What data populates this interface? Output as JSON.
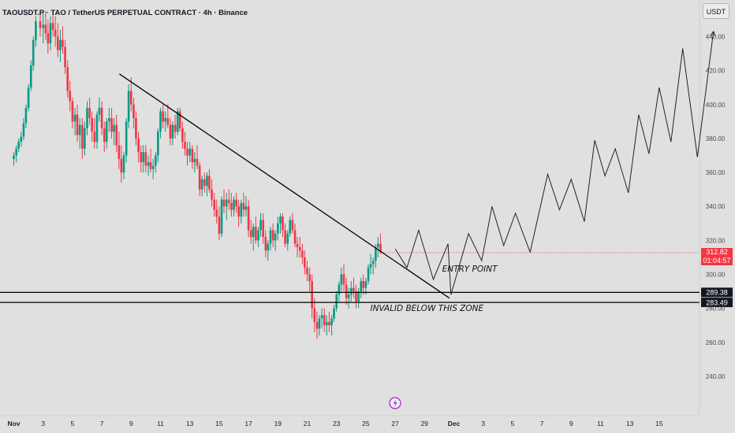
{
  "header": {
    "title": "TAOUSDT.P · TAO / TetherUS PERPETUAL CONTRACT · 4h · Binance",
    "unit": "USDT"
  },
  "chart_data": {
    "type": "candlestick",
    "symbol": "TAOUSDT.P",
    "interval": "4h",
    "exchange": "Binance",
    "ylim": [
      235,
      455
    ],
    "y_ticks": [
      "440.00",
      "420.00",
      "400.00",
      "380.00",
      "360.00",
      "340.00",
      "320.00",
      "300.00",
      "280.00",
      "260.00",
      "240.00"
    ],
    "x_ticks": [
      "Nov",
      "3",
      "5",
      "7",
      "9",
      "11",
      "13",
      "15",
      "17",
      "19",
      "21",
      "23",
      "25",
      "27",
      "29",
      "Dec",
      "3",
      "5",
      "7",
      "9",
      "11",
      "13",
      "15"
    ],
    "grid": false,
    "current_price": {
      "value": "312.82",
      "countdown": "01:04:57",
      "color": "#f23645"
    },
    "zone_lines": [
      {
        "value": 289.38,
        "label": "289.38"
      },
      {
        "value": 283.49,
        "label": "283.49"
      }
    ],
    "trendline": [
      {
        "day": 7.2,
        "price": 418
      },
      {
        "day": 29.7,
        "price": 286
      }
    ],
    "projection": [
      [
        26,
        315
      ],
      [
        26.8,
        304
      ],
      [
        27.6,
        326
      ],
      [
        28.6,
        297
      ],
      [
        29.6,
        318
      ],
      [
        29.8,
        288
      ],
      [
        31,
        324
      ],
      [
        31.9,
        308
      ],
      [
        32.6,
        340
      ],
      [
        33.4,
        317
      ],
      [
        34.2,
        336
      ],
      [
        35.2,
        313
      ],
      [
        36.4,
        359
      ],
      [
        37.2,
        338
      ],
      [
        38,
        356
      ],
      [
        38.9,
        331
      ],
      [
        39.6,
        379
      ],
      [
        40.3,
        358
      ],
      [
        41,
        374
      ],
      [
        41.9,
        348
      ],
      [
        42.6,
        394
      ],
      [
        43.3,
        371
      ],
      [
        44,
        410
      ],
      [
        44.8,
        378
      ],
      [
        45.6,
        433
      ],
      [
        46.6,
        369
      ],
      [
        47.7,
        443
      ]
    ],
    "annotations": [
      {
        "text": "ENTRY POINT",
        "day": 29.2,
        "price": 301.5
      },
      {
        "text": "INVALID BELOW THIS ZONE",
        "day": 24.3,
        "price": 278.5
      }
    ],
    "candles": [
      [
        0,
        368,
        372,
        364,
        370
      ],
      [
        0.17,
        370,
        376,
        366,
        374
      ],
      [
        0.33,
        374,
        380,
        372,
        378
      ],
      [
        0.5,
        378,
        384,
        375,
        381
      ],
      [
        0.67,
        381,
        392,
        379,
        389
      ],
      [
        0.83,
        389,
        400,
        386,
        398
      ],
      [
        1,
        398,
        412,
        396,
        410
      ],
      [
        1.17,
        410,
        426,
        408,
        423
      ],
      [
        1.33,
        423,
        440,
        420,
        438
      ],
      [
        1.5,
        438,
        452,
        434,
        449
      ],
      [
        1.8,
        449,
        455,
        440,
        445
      ],
      [
        2,
        445,
        455,
        436,
        447
      ],
      [
        2.17,
        447,
        455,
        438,
        442
      ],
      [
        2.33,
        442,
        450,
        430,
        436
      ],
      [
        2.5,
        436,
        452,
        432,
        448
      ],
      [
        2.67,
        448,
        455,
        440,
        444
      ],
      [
        2.83,
        444,
        452,
        434,
        440
      ],
      [
        3,
        440,
        448,
        428,
        432
      ],
      [
        3.17,
        432,
        444,
        425,
        438
      ],
      [
        3.33,
        438,
        446,
        430,
        434
      ],
      [
        3.5,
        434,
        438,
        418,
        422
      ],
      [
        3.67,
        422,
        426,
        404,
        408
      ],
      [
        3.83,
        408,
        414,
        396,
        402
      ],
      [
        4,
        402,
        404,
        386,
        390
      ],
      [
        4.17,
        390,
        398,
        382,
        394
      ],
      [
        4.33,
        394,
        400,
        378,
        382
      ],
      [
        4.5,
        382,
        392,
        374,
        388
      ],
      [
        4.67,
        388,
        392,
        368,
        374
      ],
      [
        4.83,
        374,
        390,
        370,
        386
      ],
      [
        5,
        386,
        402,
        382,
        398
      ],
      [
        5.17,
        398,
        404,
        388,
        392
      ],
      [
        5.33,
        392,
        396,
        378,
        384
      ],
      [
        5.5,
        384,
        392,
        374,
        378
      ],
      [
        5.67,
        378,
        396,
        374,
        394
      ],
      [
        5.83,
        394,
        404,
        390,
        398
      ],
      [
        6,
        398,
        402,
        382,
        386
      ],
      [
        6.17,
        386,
        390,
        372,
        378
      ],
      [
        6.33,
        378,
        392,
        374,
        390
      ],
      [
        6.5,
        390,
        398,
        384,
        392
      ],
      [
        6.67,
        392,
        398,
        380,
        384
      ],
      [
        6.83,
        384,
        392,
        376,
        388
      ],
      [
        7,
        388,
        394,
        372,
        376
      ],
      [
        7.17,
        376,
        384,
        362,
        368
      ],
      [
        7.33,
        368,
        376,
        354,
        360
      ],
      [
        7.5,
        360,
        372,
        356,
        370
      ],
      [
        7.67,
        370,
        392,
        366,
        390
      ],
      [
        7.83,
        390,
        412,
        386,
        408
      ],
      [
        8,
        408,
        416,
        396,
        400
      ],
      [
        8.17,
        400,
        404,
        386,
        392
      ],
      [
        8.33,
        392,
        396,
        376,
        380
      ],
      [
        8.5,
        380,
        384,
        366,
        372
      ],
      [
        8.67,
        372,
        376,
        360,
        366
      ],
      [
        8.83,
        366,
        376,
        360,
        372
      ],
      [
        9,
        372,
        376,
        360,
        364
      ],
      [
        9.17,
        364,
        370,
        358,
        366
      ],
      [
        9.33,
        366,
        374,
        360,
        362
      ],
      [
        9.5,
        362,
        368,
        356,
        364
      ],
      [
        9.67,
        364,
        372,
        360,
        370
      ],
      [
        9.83,
        370,
        386,
        366,
        384
      ],
      [
        10,
        384,
        398,
        380,
        396
      ],
      [
        10.17,
        396,
        400,
        386,
        390
      ],
      [
        10.33,
        390,
        396,
        384,
        392
      ],
      [
        10.5,
        392,
        400,
        386,
        388
      ],
      [
        10.67,
        388,
        392,
        376,
        380
      ],
      [
        10.83,
        380,
        390,
        376,
        388
      ],
      [
        11,
        388,
        394,
        380,
        384
      ],
      [
        11.17,
        384,
        398,
        382,
        396
      ],
      [
        11.33,
        396,
        398,
        384,
        386
      ],
      [
        11.5,
        386,
        390,
        374,
        378
      ],
      [
        11.67,
        378,
        384,
        370,
        374
      ],
      [
        11.83,
        374,
        378,
        364,
        370
      ],
      [
        12,
        370,
        378,
        366,
        374
      ],
      [
        12.17,
        374,
        376,
        362,
        366
      ],
      [
        12.33,
        366,
        372,
        360,
        368
      ],
      [
        12.5,
        368,
        376,
        362,
        364
      ],
      [
        12.67,
        364,
        366,
        346,
        350
      ],
      [
        12.83,
        350,
        358,
        346,
        356
      ],
      [
        13,
        356,
        360,
        348,
        352
      ],
      [
        13.17,
        352,
        360,
        346,
        358
      ],
      [
        13.33,
        358,
        362,
        348,
        350
      ],
      [
        13.5,
        350,
        356,
        340,
        344
      ],
      [
        13.67,
        344,
        348,
        334,
        338
      ],
      [
        13.83,
        338,
        344,
        330,
        334
      ],
      [
        14,
        334,
        340,
        320,
        324
      ],
      [
        14.17,
        324,
        346,
        322,
        344
      ],
      [
        14.33,
        344,
        350,
        336,
        340
      ],
      [
        14.5,
        340,
        348,
        332,
        344
      ],
      [
        14.67,
        344,
        350,
        338,
        342
      ],
      [
        14.83,
        342,
        348,
        334,
        338
      ],
      [
        15,
        338,
        346,
        334,
        344
      ],
      [
        15.17,
        344,
        348,
        336,
        340
      ],
      [
        15.33,
        340,
        344,
        328,
        334
      ],
      [
        15.5,
        334,
        344,
        330,
        342
      ],
      [
        15.67,
        342,
        348,
        334,
        338
      ],
      [
        15.83,
        338,
        346,
        334,
        340
      ],
      [
        16,
        340,
        344,
        322,
        326
      ],
      [
        16.17,
        326,
        332,
        318,
        322
      ],
      [
        16.33,
        322,
        330,
        314,
        328
      ],
      [
        16.5,
        328,
        334,
        318,
        320
      ],
      [
        16.67,
        320,
        328,
        316,
        326
      ],
      [
        16.83,
        326,
        336,
        322,
        332
      ],
      [
        17,
        332,
        336,
        318,
        322
      ],
      [
        17.17,
        322,
        326,
        310,
        314
      ],
      [
        17.33,
        314,
        320,
        308,
        318
      ],
      [
        17.5,
        318,
        328,
        314,
        326
      ],
      [
        17.67,
        326,
        330,
        316,
        320
      ],
      [
        17.83,
        320,
        326,
        314,
        324
      ],
      [
        18,
        324,
        334,
        320,
        330
      ],
      [
        18.17,
        330,
        336,
        324,
        334
      ],
      [
        18.33,
        334,
        336,
        322,
        326
      ],
      [
        18.5,
        326,
        330,
        316,
        318
      ],
      [
        18.67,
        318,
        326,
        314,
        324
      ],
      [
        18.83,
        324,
        334,
        322,
        332
      ],
      [
        19,
        332,
        336,
        324,
        326
      ],
      [
        19.17,
        326,
        330,
        316,
        318
      ],
      [
        19.33,
        318,
        322,
        310,
        316
      ],
      [
        19.5,
        316,
        322,
        310,
        314
      ],
      [
        19.67,
        314,
        318,
        306,
        310
      ],
      [
        19.83,
        310,
        314,
        300,
        304
      ],
      [
        20,
        304,
        308,
        296,
        300
      ],
      [
        20.17,
        300,
        304,
        290,
        296
      ],
      [
        20.33,
        296,
        300,
        274,
        280
      ],
      [
        20.5,
        280,
        286,
        266,
        272
      ],
      [
        20.67,
        272,
        278,
        262,
        268
      ],
      [
        20.83,
        268,
        276,
        264,
        274
      ],
      [
        21,
        274,
        280,
        268,
        276
      ],
      [
        21.17,
        276,
        280,
        266,
        270
      ],
      [
        21.33,
        270,
        276,
        264,
        272
      ],
      [
        21.5,
        272,
        278,
        266,
        270
      ],
      [
        21.67,
        270,
        276,
        264,
        274
      ],
      [
        21.83,
        274,
        282,
        272,
        280
      ],
      [
        22,
        280,
        290,
        278,
        288
      ],
      [
        22.17,
        288,
        296,
        284,
        294
      ],
      [
        22.33,
        294,
        304,
        290,
        300
      ],
      [
        22.5,
        300,
        306,
        290,
        294
      ],
      [
        22.67,
        294,
        298,
        282,
        286
      ],
      [
        22.83,
        286,
        292,
        280,
        288
      ],
      [
        23,
        288,
        296,
        284,
        292
      ],
      [
        23.17,
        292,
        298,
        286,
        290
      ],
      [
        23.33,
        290,
        294,
        280,
        284
      ],
      [
        23.5,
        284,
        292,
        280,
        290
      ],
      [
        23.67,
        290,
        298,
        286,
        296
      ],
      [
        23.83,
        296,
        300,
        288,
        292
      ],
      [
        24,
        292,
        298,
        288,
        296
      ],
      [
        24.17,
        296,
        306,
        294,
        304
      ],
      [
        24.33,
        304,
        312,
        300,
        306
      ],
      [
        24.5,
        306,
        310,
        300,
        308
      ],
      [
        24.67,
        308,
        318,
        304,
        316
      ],
      [
        24.83,
        316,
        322,
        310,
        318
      ],
      [
        25,
        318,
        324,
        312,
        313
      ]
    ]
  }
}
